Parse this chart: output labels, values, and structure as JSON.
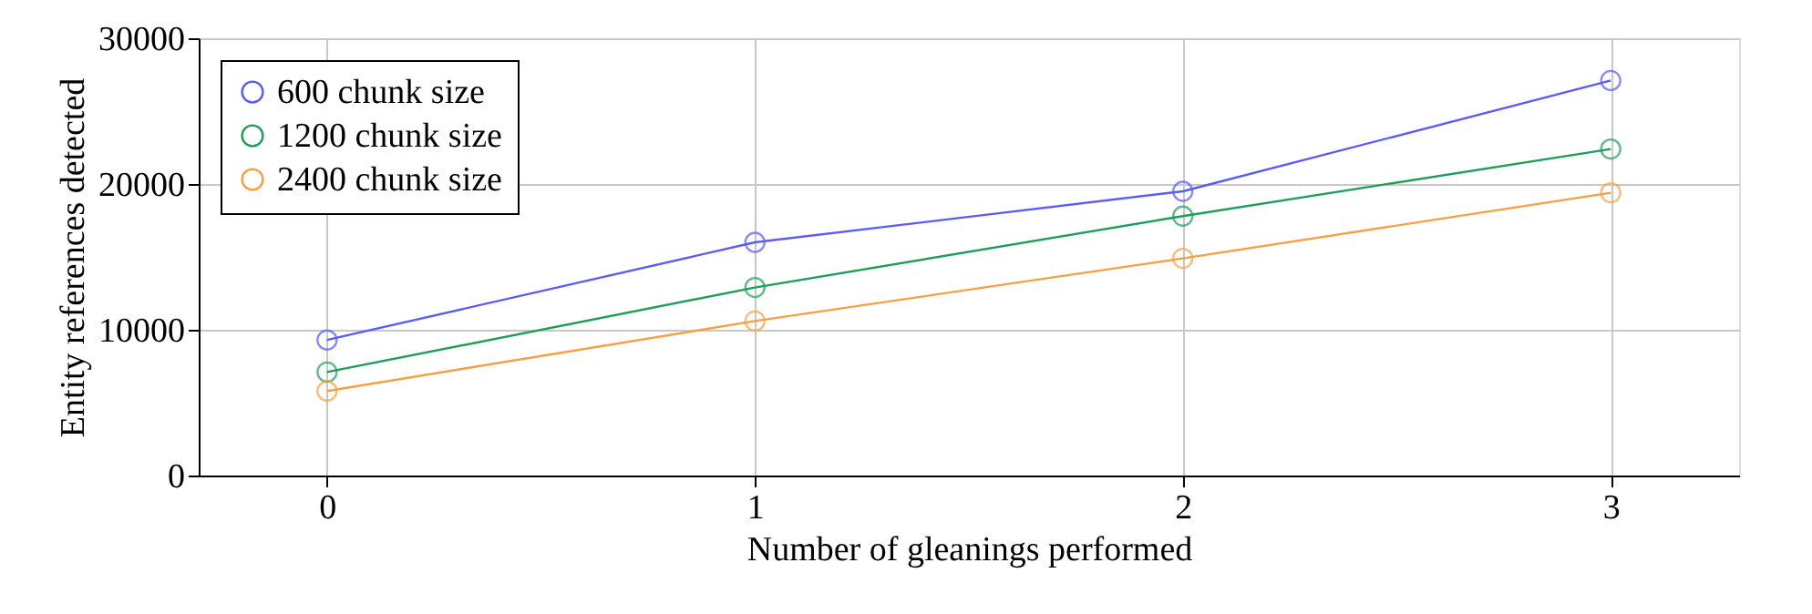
{
  "chart_data": {
    "type": "line",
    "xlabel": "Number of gleanings performed",
    "ylabel": "Entity references detected",
    "x": [
      0,
      1,
      2,
      3
    ],
    "series": [
      {
        "name": "600 chunk size",
        "color": "#5b5bf5",
        "values": [
          9300,
          16000,
          19500,
          27100
        ]
      },
      {
        "name": "1200 chunk size",
        "color": "#1f9e5a",
        "values": [
          7100,
          12900,
          17800,
          22400
        ]
      },
      {
        "name": "2400 chunk size",
        "color": "#f7a043",
        "values": [
          5800,
          10600,
          14900,
          19400
        ]
      }
    ],
    "xlim": [
      -0.3,
      3.3
    ],
    "xticks": [
      0,
      1,
      2,
      3
    ],
    "ylim": [
      0,
      30000
    ],
    "yticks": [
      0,
      10000,
      20000,
      30000
    ],
    "grid": true,
    "legend": "top left",
    "marker": "circle",
    "line_style": "solid"
  }
}
